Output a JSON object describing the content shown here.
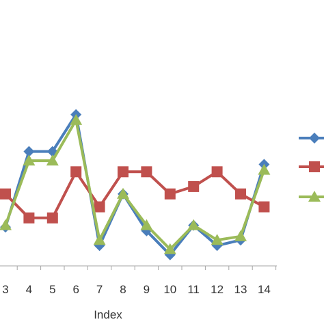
{
  "chart_data": {
    "type": "line",
    "xlabel": "Index",
    "ylabel": "",
    "categories": [
      "3",
      "4",
      "5",
      "6",
      "7",
      "8",
      "9",
      "10",
      "11",
      "12",
      "13",
      "14"
    ],
    "ylim": [
      0,
      10
    ],
    "grid": false,
    "legend_position": "right",
    "series": [
      {
        "color": "#4a7ebb",
        "marker": "diamond",
        "values": [
          2.1,
          6.2,
          6.2,
          8.2,
          1.1,
          3.9,
          1.9,
          0.6,
          2.2,
          1.1,
          1.4,
          5.5
        ]
      },
      {
        "color": "#c0504d",
        "marker": "square",
        "values": [
          3.9,
          2.6,
          2.6,
          5.1,
          3.2,
          5.1,
          5.1,
          3.9,
          4.3,
          5.1,
          3.9,
          3.2
        ]
      },
      {
        "color": "#9bbb59",
        "marker": "triangle",
        "values": [
          2.2,
          5.7,
          5.7,
          7.9,
          1.4,
          3.9,
          2.2,
          0.9,
          2.2,
          1.4,
          1.6,
          5.2
        ]
      }
    ]
  }
}
